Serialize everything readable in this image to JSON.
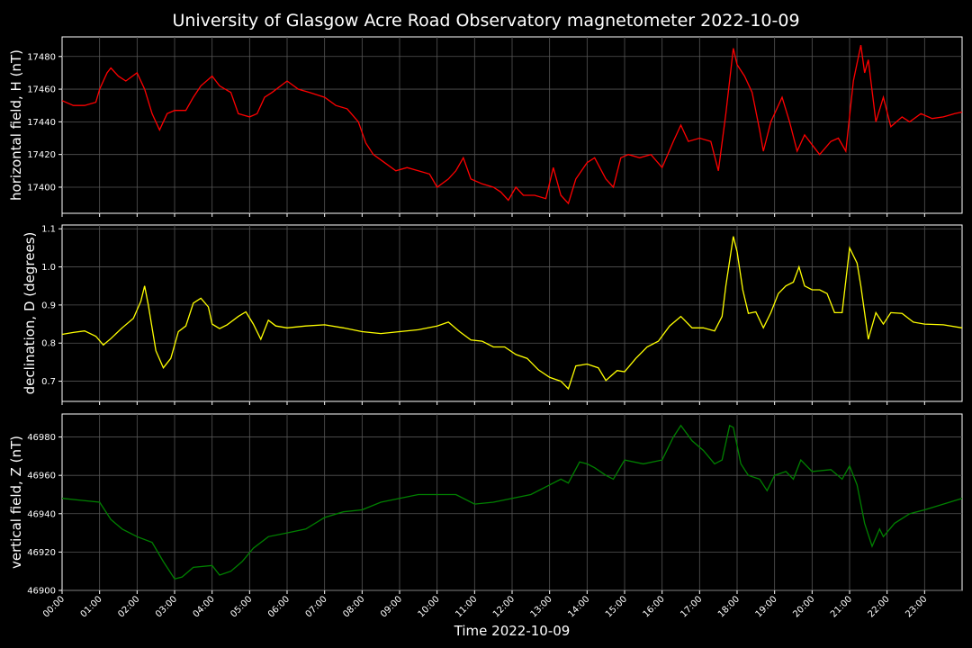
{
  "chart_data": {
    "type": "line",
    "title": "University of Glasgow Acre Road Observatory magnetometer 2022-10-09",
    "xlabel": "Time 2022-10-09",
    "x_unit": "hour of day",
    "xlim": [
      0,
      24
    ],
    "x_tick_labels": [
      "00:00",
      "01:00",
      "02:00",
      "03:00",
      "04:00",
      "05:00",
      "06:00",
      "07:00",
      "08:00",
      "09:00",
      "10:00",
      "11:00",
      "12:00",
      "13:00",
      "14:00",
      "15:00",
      "16:00",
      "17:00",
      "18:00",
      "19:00",
      "20:00",
      "21:00",
      "22:00",
      "23:00"
    ],
    "grid": true,
    "panels": [
      {
        "ylabel": "horizontal field, H (nT)",
        "color": "#ff0000",
        "ylim": [
          17384,
          17492
        ],
        "yticks": [
          17400,
          17420,
          17440,
          17460,
          17480
        ],
        "points": [
          [
            0,
            17453
          ],
          [
            0.3,
            17450
          ],
          [
            0.6,
            17450
          ],
          [
            0.9,
            17452
          ],
          [
            1.0,
            17460
          ],
          [
            1.2,
            17470
          ],
          [
            1.3,
            17473
          ],
          [
            1.5,
            17468
          ],
          [
            1.7,
            17465
          ],
          [
            2.0,
            17470
          ],
          [
            2.2,
            17460
          ],
          [
            2.4,
            17445
          ],
          [
            2.6,
            17435
          ],
          [
            2.8,
            17445
          ],
          [
            3.0,
            17447
          ],
          [
            3.3,
            17447
          ],
          [
            3.5,
            17455
          ],
          [
            3.7,
            17462
          ],
          [
            4.0,
            17468
          ],
          [
            4.2,
            17462
          ],
          [
            4.5,
            17458
          ],
          [
            4.7,
            17445
          ],
          [
            5.0,
            17443
          ],
          [
            5.2,
            17445
          ],
          [
            5.4,
            17455
          ],
          [
            5.6,
            17458
          ],
          [
            6.0,
            17465
          ],
          [
            6.3,
            17460
          ],
          [
            6.6,
            17458
          ],
          [
            7.0,
            17455
          ],
          [
            7.3,
            17450
          ],
          [
            7.6,
            17448
          ],
          [
            7.9,
            17440
          ],
          [
            8.1,
            17427
          ],
          [
            8.3,
            17420
          ],
          [
            8.6,
            17415
          ],
          [
            8.9,
            17410
          ],
          [
            9.2,
            17412
          ],
          [
            9.5,
            17410
          ],
          [
            9.8,
            17408
          ],
          [
            10.0,
            17400
          ],
          [
            10.3,
            17405
          ],
          [
            10.5,
            17410
          ],
          [
            10.7,
            17418
          ],
          [
            10.9,
            17405
          ],
          [
            11.2,
            17402
          ],
          [
            11.5,
            17400
          ],
          [
            11.7,
            17397
          ],
          [
            11.9,
            17392
          ],
          [
            12.1,
            17400
          ],
          [
            12.3,
            17395
          ],
          [
            12.6,
            17395
          ],
          [
            12.9,
            17393
          ],
          [
            13.1,
            17412
          ],
          [
            13.3,
            17395
          ],
          [
            13.5,
            17390
          ],
          [
            13.7,
            17405
          ],
          [
            14.0,
            17415
          ],
          [
            14.2,
            17418
          ],
          [
            14.5,
            17405
          ],
          [
            14.7,
            17400
          ],
          [
            14.9,
            17418
          ],
          [
            15.1,
            17420
          ],
          [
            15.4,
            17418
          ],
          [
            15.7,
            17420
          ],
          [
            16.0,
            17412
          ],
          [
            16.3,
            17428
          ],
          [
            16.5,
            17438
          ],
          [
            16.7,
            17428
          ],
          [
            17.0,
            17430
          ],
          [
            17.3,
            17428
          ],
          [
            17.5,
            17410
          ],
          [
            17.7,
            17445
          ],
          [
            17.9,
            17485
          ],
          [
            18.0,
            17475
          ],
          [
            18.2,
            17468
          ],
          [
            18.4,
            17458
          ],
          [
            18.6,
            17435
          ],
          [
            18.7,
            17422
          ],
          [
            18.9,
            17440
          ],
          [
            19.2,
            17455
          ],
          [
            19.4,
            17440
          ],
          [
            19.6,
            17422
          ],
          [
            19.8,
            17432
          ],
          [
            20.0,
            17426
          ],
          [
            20.2,
            17420
          ],
          [
            20.5,
            17428
          ],
          [
            20.7,
            17430
          ],
          [
            20.9,
            17422
          ],
          [
            21.1,
            17465
          ],
          [
            21.3,
            17487
          ],
          [
            21.4,
            17470
          ],
          [
            21.5,
            17478
          ],
          [
            21.7,
            17440
          ],
          [
            21.9,
            17455
          ],
          [
            22.1,
            17437
          ],
          [
            22.4,
            17443
          ],
          [
            22.6,
            17440
          ],
          [
            22.9,
            17445
          ],
          [
            23.2,
            17442
          ],
          [
            23.5,
            17443
          ],
          [
            23.8,
            17445
          ],
          [
            24,
            17446
          ]
        ]
      },
      {
        "ylabel": "declination, D (degrees)",
        "color": "#ffff00",
        "ylim": [
          0.647,
          1.11
        ],
        "yticks": [
          0.7,
          0.8,
          0.9,
          1.0,
          1.1
        ],
        "ytick_labels": [
          "0.7",
          "0.8",
          "0.9",
          "1.0",
          "1.1"
        ],
        "points": [
          [
            0,
            0.823
          ],
          [
            0.3,
            0.828
          ],
          [
            0.6,
            0.832
          ],
          [
            0.9,
            0.818
          ],
          [
            1.1,
            0.795
          ],
          [
            1.3,
            0.812
          ],
          [
            1.6,
            0.84
          ],
          [
            1.9,
            0.865
          ],
          [
            2.1,
            0.91
          ],
          [
            2.2,
            0.95
          ],
          [
            2.3,
            0.9
          ],
          [
            2.5,
            0.78
          ],
          [
            2.7,
            0.735
          ],
          [
            2.9,
            0.76
          ],
          [
            3.1,
            0.83
          ],
          [
            3.3,
            0.845
          ],
          [
            3.5,
            0.905
          ],
          [
            3.7,
            0.918
          ],
          [
            3.9,
            0.895
          ],
          [
            4.0,
            0.85
          ],
          [
            4.2,
            0.838
          ],
          [
            4.4,
            0.848
          ],
          [
            4.7,
            0.87
          ],
          [
            4.9,
            0.882
          ],
          [
            5.1,
            0.85
          ],
          [
            5.3,
            0.81
          ],
          [
            5.5,
            0.86
          ],
          [
            5.7,
            0.845
          ],
          [
            6.0,
            0.84
          ],
          [
            6.5,
            0.845
          ],
          [
            7.0,
            0.848
          ],
          [
            7.5,
            0.84
          ],
          [
            8.0,
            0.83
          ],
          [
            8.5,
            0.825
          ],
          [
            9.0,
            0.83
          ],
          [
            9.5,
            0.835
          ],
          [
            10.0,
            0.845
          ],
          [
            10.3,
            0.855
          ],
          [
            10.6,
            0.83
          ],
          [
            10.9,
            0.808
          ],
          [
            11.2,
            0.805
          ],
          [
            11.5,
            0.79
          ],
          [
            11.8,
            0.79
          ],
          [
            12.1,
            0.77
          ],
          [
            12.4,
            0.76
          ],
          [
            12.7,
            0.73
          ],
          [
            13.0,
            0.71
          ],
          [
            13.3,
            0.7
          ],
          [
            13.5,
            0.68
          ],
          [
            13.7,
            0.74
          ],
          [
            14.0,
            0.745
          ],
          [
            14.3,
            0.735
          ],
          [
            14.5,
            0.702
          ],
          [
            14.8,
            0.728
          ],
          [
            15.0,
            0.725
          ],
          [
            15.3,
            0.76
          ],
          [
            15.6,
            0.79
          ],
          [
            15.9,
            0.805
          ],
          [
            16.2,
            0.845
          ],
          [
            16.5,
            0.87
          ],
          [
            16.8,
            0.84
          ],
          [
            17.1,
            0.84
          ],
          [
            17.4,
            0.832
          ],
          [
            17.6,
            0.87
          ],
          [
            17.7,
            0.95
          ],
          [
            17.9,
            1.08
          ],
          [
            18.0,
            1.04
          ],
          [
            18.15,
            0.94
          ],
          [
            18.3,
            0.878
          ],
          [
            18.5,
            0.882
          ],
          [
            18.7,
            0.84
          ],
          [
            18.9,
            0.88
          ],
          [
            19.1,
            0.93
          ],
          [
            19.3,
            0.95
          ],
          [
            19.5,
            0.96
          ],
          [
            19.65,
            1.0
          ],
          [
            19.8,
            0.95
          ],
          [
            20.0,
            0.94
          ],
          [
            20.2,
            0.94
          ],
          [
            20.4,
            0.93
          ],
          [
            20.6,
            0.88
          ],
          [
            20.8,
            0.88
          ],
          [
            21.0,
            1.05
          ],
          [
            21.2,
            1.01
          ],
          [
            21.3,
            0.95
          ],
          [
            21.5,
            0.81
          ],
          [
            21.7,
            0.88
          ],
          [
            21.9,
            0.85
          ],
          [
            22.1,
            0.88
          ],
          [
            22.4,
            0.878
          ],
          [
            22.7,
            0.855
          ],
          [
            23.0,
            0.85
          ],
          [
            23.5,
            0.848
          ],
          [
            24,
            0.84
          ]
        ]
      },
      {
        "ylabel": "vertical field, Z (nT)",
        "color": "#008000",
        "ylim": [
          46900,
          46992
        ],
        "yticks": [
          46900,
          46920,
          46940,
          46960,
          46980
        ],
        "points": [
          [
            0,
            46948
          ],
          [
            0.5,
            46947
          ],
          [
            1.0,
            46946
          ],
          [
            1.3,
            46937
          ],
          [
            1.6,
            46932
          ],
          [
            2.0,
            46928
          ],
          [
            2.4,
            46925
          ],
          [
            2.7,
            46915
          ],
          [
            3.0,
            46906
          ],
          [
            3.2,
            46907
          ],
          [
            3.5,
            46912
          ],
          [
            4.0,
            46913
          ],
          [
            4.2,
            46908
          ],
          [
            4.5,
            46910
          ],
          [
            4.8,
            46915
          ],
          [
            5.1,
            46922
          ],
          [
            5.5,
            46928
          ],
          [
            6.0,
            46930
          ],
          [
            6.5,
            46932
          ],
          [
            7.0,
            46938
          ],
          [
            7.5,
            46941
          ],
          [
            8.0,
            46942
          ],
          [
            8.5,
            46946
          ],
          [
            9.0,
            46948
          ],
          [
            9.5,
            46950
          ],
          [
            10.0,
            46950
          ],
          [
            10.5,
            46950
          ],
          [
            11.0,
            46945
          ],
          [
            11.5,
            46946
          ],
          [
            12.0,
            46948
          ],
          [
            12.5,
            46950
          ],
          [
            13.0,
            46955
          ],
          [
            13.3,
            46958
          ],
          [
            13.5,
            46956
          ],
          [
            13.8,
            46967
          ],
          [
            14.0,
            46966
          ],
          [
            14.2,
            46964
          ],
          [
            14.5,
            46960
          ],
          [
            14.7,
            46958
          ],
          [
            15.0,
            46968
          ],
          [
            15.5,
            46966
          ],
          [
            16.0,
            46968
          ],
          [
            16.3,
            46980
          ],
          [
            16.5,
            46986
          ],
          [
            16.8,
            46978
          ],
          [
            17.1,
            46973
          ],
          [
            17.4,
            46966
          ],
          [
            17.6,
            46968
          ],
          [
            17.8,
            46986
          ],
          [
            17.9,
            46985
          ],
          [
            18.1,
            46966
          ],
          [
            18.3,
            46960
          ],
          [
            18.6,
            46958
          ],
          [
            18.8,
            46952
          ],
          [
            19.0,
            46960
          ],
          [
            19.3,
            46962
          ],
          [
            19.5,
            46958
          ],
          [
            19.7,
            46968
          ],
          [
            20.0,
            46962
          ],
          [
            20.5,
            46963
          ],
          [
            20.8,
            46958
          ],
          [
            21.0,
            46965
          ],
          [
            21.2,
            46955
          ],
          [
            21.4,
            46935
          ],
          [
            21.6,
            46923
          ],
          [
            21.8,
            46932
          ],
          [
            21.9,
            46928
          ],
          [
            22.2,
            46935
          ],
          [
            22.6,
            46940
          ],
          [
            23.0,
            46942
          ],
          [
            23.5,
            46945
          ],
          [
            24,
            46948
          ]
        ]
      }
    ]
  }
}
